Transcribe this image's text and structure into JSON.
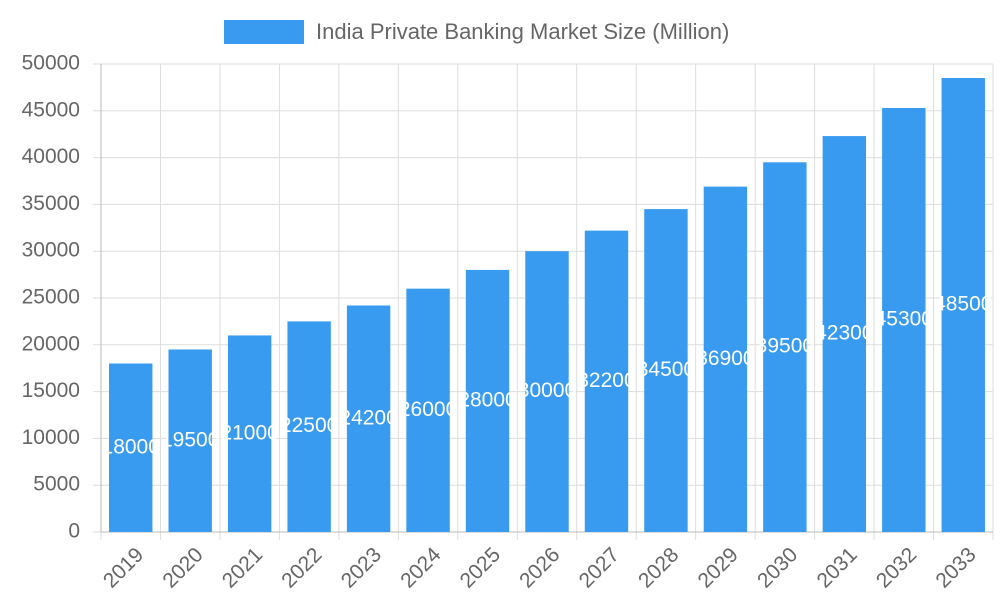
{
  "chart_data": {
    "type": "bar",
    "title": "India Private Banking Market Size (Million)",
    "categories": [
      "2019",
      "2020",
      "2021",
      "2022",
      "2023",
      "2024",
      "2025",
      "2026",
      "2027",
      "2028",
      "2029",
      "2030",
      "2031",
      "2032",
      "2033"
    ],
    "series": [
      {
        "name": "India Private Banking Market Size (Million)",
        "color": "#399bf0",
        "values": [
          18000,
          19500,
          21000,
          22500,
          24200,
          26000,
          28000,
          30000,
          32200,
          34500,
          36900,
          39500,
          42300,
          45300,
          48500
        ]
      }
    ],
    "ylim": [
      0,
      50000
    ],
    "yticks": [
      0,
      5000,
      10000,
      15000,
      20000,
      25000,
      30000,
      35000,
      40000,
      45000,
      50000
    ],
    "grid": true
  }
}
